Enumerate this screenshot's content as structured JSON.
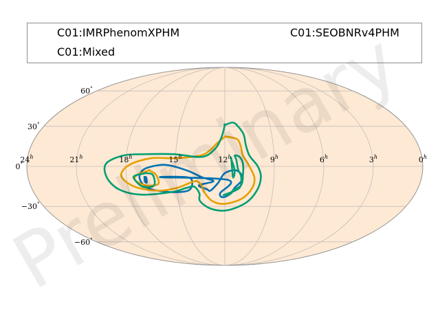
{
  "chart_data": {
    "type": "contour",
    "projection": "mollweide",
    "legend": {
      "placement": "top",
      "entries": [
        "C01:IMRPhenomXPHM",
        "C01:SEOBNRv4PHM",
        "C01:Mixed"
      ]
    },
    "ra_tick_labels": [
      "24h",
      "21h",
      "18h",
      "15h",
      "12h",
      "9h",
      "6h",
      "3h",
      "0h"
    ],
    "dec_tick_labels": [
      "60°",
      "30°",
      "0°",
      "−30°",
      "−60°"
    ],
    "ra_ticks_hours": [
      24,
      21,
      18,
      15,
      12,
      9,
      6,
      3,
      0
    ],
    "dec_ticks_deg": [
      60,
      30,
      0,
      -30,
      -60
    ],
    "grid": true,
    "background_color": "#fde9d4",
    "watermark": "Preliminary",
    "series": [
      {
        "name": "C01:IMRPhenomXPHM",
        "color": "#0072b2",
        "contours": [
          [
            [
              15.9,
              -8
            ],
            [
              14.3,
              -8
            ],
            [
              14.0,
              -12
            ],
            [
              14.3,
              -18
            ],
            [
              15.5,
              -19
            ],
            [
              16.8,
              -16
            ],
            [
              17.2,
              -9
            ],
            [
              17.0,
              -3
            ],
            [
              16.4,
              0
            ],
            [
              15.5,
              1
            ],
            [
              14.3,
              -3
            ],
            [
              13.4,
              -8
            ],
            [
              12.7,
              -11
            ],
            [
              13.6,
              -14
            ],
            [
              13.1,
              -17
            ],
            [
              12.9,
              -18
            ],
            [
              12.4,
              -12
            ],
            [
              12.0,
              -5
            ],
            [
              11.3,
              -3
            ],
            [
              10.9,
              -9
            ],
            [
              11.4,
              -16
            ],
            [
              11.6,
              -20
            ],
            [
              12.1,
              -23
            ],
            [
              12.3,
              -20
            ],
            [
              11.8,
              -10
            ]
          ],
          [
            [
              16.9,
              -8
            ],
            [
              16.9,
              -11
            ],
            [
              16.8,
              -12
            ],
            [
              16.8,
              -8
            ],
            [
              16.9,
              -8
            ]
          ]
        ]
      },
      {
        "name": "C01:SEOBNRv4PHM",
        "color": "#e69f00",
        "contours": [
          [
            [
              12.0,
              22
            ],
            [
              12.5,
              17
            ],
            [
              12.9,
              12
            ],
            [
              13.5,
              8
            ],
            [
              15.0,
              6
            ],
            [
              16.5,
              6
            ],
            [
              17.8,
              1
            ],
            [
              18.3,
              -7
            ],
            [
              17.6,
              -15
            ],
            [
              16.2,
              -18
            ],
            [
              15.0,
              -16
            ],
            [
              14.1,
              -12
            ],
            [
              13.7,
              -11
            ],
            [
              13.4,
              -15
            ],
            [
              13.3,
              -19
            ],
            [
              12.8,
              -26
            ],
            [
              12.0,
              -28
            ],
            [
              10.9,
              -24
            ],
            [
              10.3,
              -16
            ],
            [
              10.2,
              -8
            ],
            [
              10.6,
              2
            ],
            [
              10.9,
              8
            ],
            [
              11.0,
              14
            ],
            [
              11.2,
              20
            ],
            [
              11.8,
              22
            ],
            [
              12.0,
              22
            ]
          ],
          [
            [
              16.6,
              -3
            ],
            [
              17.3,
              -6
            ],
            [
              17.5,
              -10
            ],
            [
              16.9,
              -14
            ],
            [
              16.1,
              -13
            ],
            [
              16.2,
              -6
            ],
            [
              16.6,
              -3
            ]
          ]
        ]
      },
      {
        "name": "C01:Mixed",
        "color": "#009e73",
        "contours": [
          [
            [
              12.0,
              31
            ],
            [
              12.2,
              22
            ],
            [
              12.6,
              13
            ],
            [
              13.4,
              7
            ],
            [
              15.1,
              9
            ],
            [
              16.9,
              9
            ],
            [
              18.2,
              8
            ],
            [
              19.2,
              2
            ],
            [
              19.2,
              -8
            ],
            [
              18.6,
              -17
            ],
            [
              17.3,
              -21
            ],
            [
              15.3,
              -19
            ],
            [
              14.4,
              -16
            ],
            [
              13.9,
              -15
            ],
            [
              13.6,
              -20
            ],
            [
              13.6,
              -26
            ],
            [
              12.9,
              -32
            ],
            [
              11.8,
              -33
            ],
            [
              10.6,
              -27
            ],
            [
              10.0,
              -18
            ],
            [
              9.8,
              -8
            ],
            [
              10.0,
              0
            ],
            [
              10.5,
              8
            ],
            [
              10.7,
              16
            ],
            [
              10.8,
              24
            ],
            [
              11.2,
              31
            ],
            [
              11.5,
              33
            ],
            [
              12.0,
              31
            ]
          ],
          [
            [
              12.0,
              -21
            ],
            [
              11.1,
              -16
            ],
            [
              11.0,
              -8
            ],
            [
              11.2,
              -2
            ],
            [
              11.3,
              5
            ],
            [
              11.4,
              8
            ],
            [
              11.1,
              7
            ],
            [
              10.9,
              2
            ],
            [
              10.9,
              -7
            ],
            [
              11.0,
              -14
            ],
            [
              11.5,
              -18
            ],
            [
              11.7,
              -21
            ],
            [
              12.0,
              -21
            ]
          ],
          [
            [
              16.8,
              -5
            ],
            [
              17.5,
              -7
            ],
            [
              17.5,
              -10
            ],
            [
              17.1,
              -15
            ],
            [
              16.5,
              -15
            ],
            [
              16.3,
              -12
            ],
            [
              16.4,
              -6
            ],
            [
              16.8,
              -5
            ]
          ],
          [
            [
              11.6,
              5
            ],
            [
              11.5,
              -8
            ],
            [
              11.4,
              -3
            ],
            [
              11.6,
              5
            ]
          ]
        ]
      }
    ]
  }
}
